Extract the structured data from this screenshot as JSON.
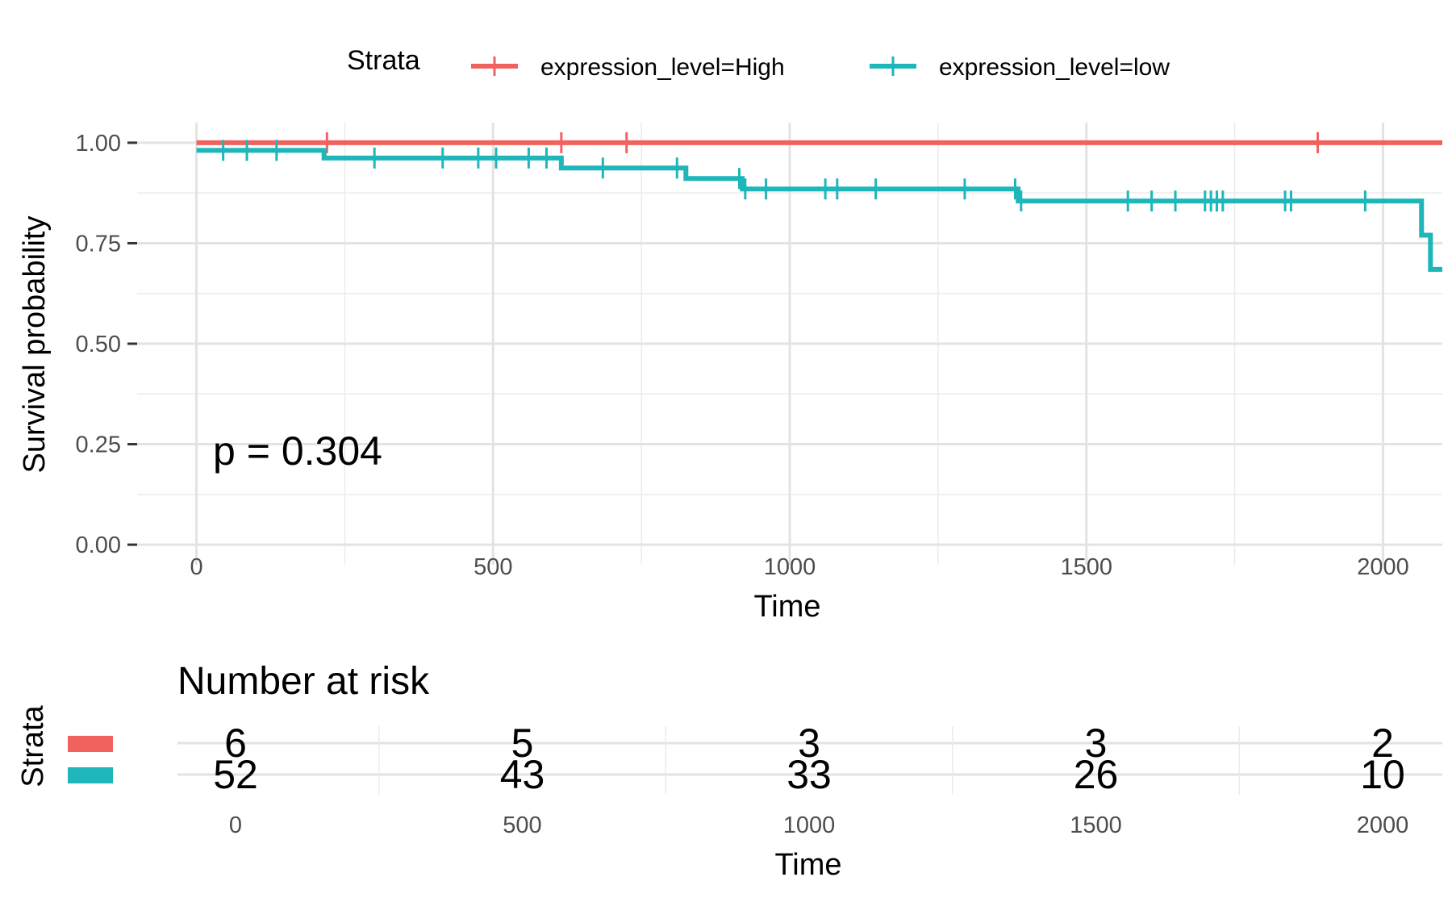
{
  "legend": {
    "title": "Strata",
    "entries": [
      {
        "label": "expression_level=High",
        "color": "#F0625E"
      },
      {
        "label": "expression_level=low",
        "color": "#1EB6B9"
      }
    ]
  },
  "chart_data": [
    {
      "type": "line",
      "subtype": "kaplan-meier step curve",
      "xlabel": "Time",
      "ylabel": "Survival probability",
      "xlim": [
        -100,
        2100
      ],
      "ylim": [
        -0.05,
        1.05
      ],
      "x_ticks": [
        "0",
        "500",
        "1000",
        "1500",
        "2000"
      ],
      "y_ticks": [
        "0.00",
        "0.25",
        "0.50",
        "0.75",
        "1.00"
      ],
      "grid": true,
      "legend_position": "top",
      "annotation": "p = 0.304",
      "series": [
        {
          "name": "expression_level=High",
          "color": "#F0625E",
          "steps": [
            [
              0,
              1.0
            ],
            [
              2100,
              1.0
            ]
          ],
          "censor_times": [
            220,
            615,
            725,
            1890
          ]
        },
        {
          "name": "expression_level=low",
          "color": "#1EB6B9",
          "steps": [
            [
              0,
              0.981
            ],
            [
              215,
              0.962
            ],
            [
              615,
              0.937
            ],
            [
              825,
              0.911
            ],
            [
              920,
              0.885
            ],
            [
              1385,
              0.855
            ],
            [
              2065,
              0.77
            ],
            [
              2080,
              0.685
            ],
            [
              2100,
              0.685
            ]
          ],
          "censor_times": [
            45,
            85,
            135,
            300,
            415,
            475,
            505,
            560,
            590,
            685,
            810,
            915,
            925,
            960,
            1060,
            1080,
            1145,
            1295,
            1380,
            1390,
            1570,
            1610,
            1650,
            1700,
            1710,
            1720,
            1730,
            1835,
            1845,
            1970
          ]
        }
      ]
    },
    {
      "type": "table",
      "title": "Number at risk",
      "ylabel": "Strata",
      "xlabel": "Time",
      "x_ticks": [
        "0",
        "500",
        "1000",
        "1500",
        "2000"
      ],
      "rows": [
        {
          "color": "#F0625E",
          "values": [
            "6",
            "5",
            "3",
            "3",
            "2"
          ]
        },
        {
          "color": "#1EB6B9",
          "values": [
            "52",
            "43",
            "33",
            "26",
            "10"
          ]
        }
      ]
    }
  ]
}
